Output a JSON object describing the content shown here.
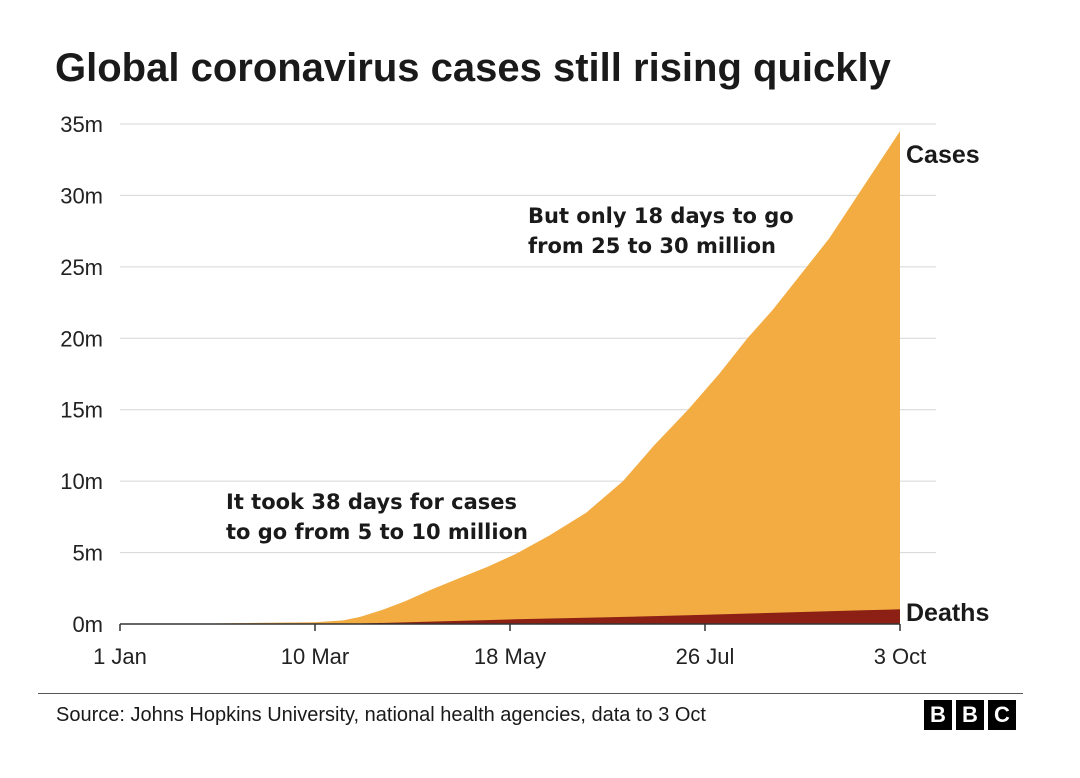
{
  "chart_data": {
    "type": "area",
    "title": "Global coronavirus cases still rising quickly",
    "x_axis": {
      "type": "date",
      "range": [
        "2020-01-01",
        "2020-10-03"
      ],
      "tick_labels": [
        "1 Jan",
        "10 Mar",
        "18 May",
        "26 Jul",
        "3 Oct"
      ],
      "tick_dates": [
        "2020-01-01",
        "2020-03-10",
        "2020-05-18",
        "2020-07-26",
        "2020-10-03"
      ]
    },
    "y_axis": {
      "range": [
        0,
        35000000
      ],
      "ticks": [
        0,
        5000000,
        10000000,
        15000000,
        20000000,
        25000000,
        30000000,
        35000000
      ],
      "tick_labels": [
        "0m",
        "5m",
        "10m",
        "15m",
        "20m",
        "25m",
        "30m",
        "35m"
      ]
    },
    "grid": "horizontal",
    "series": [
      {
        "name": "Cases",
        "color": "#f2ac42",
        "x": [
          "2020-01-01",
          "2020-01-22",
          "2020-02-15",
          "2020-03-10",
          "2020-03-20",
          "2020-03-26",
          "2020-04-03",
          "2020-04-11",
          "2020-04-20",
          "2020-04-30",
          "2020-05-10",
          "2020-05-20",
          "2020-06-01",
          "2020-06-14",
          "2020-06-27",
          "2020-07-08",
          "2020-07-20",
          "2020-07-31",
          "2020-08-10",
          "2020-08-19",
          "2020-08-29",
          "2020-09-08",
          "2020-09-18",
          "2020-09-27",
          "2020-10-03"
        ],
        "values": [
          0,
          500,
          70000,
          120000,
          250000,
          500000,
          1000000,
          1600000,
          2400000,
          3200000,
          4000000,
          4900000,
          6200000,
          7800000,
          10000000,
          12500000,
          15000000,
          17500000,
          20000000,
          22000000,
          24500000,
          27000000,
          30000000,
          32700000,
          34500000
        ]
      },
      {
        "name": "Deaths",
        "color": "#8c2014",
        "x": [
          "2020-01-01",
          "2020-03-10",
          "2020-03-25",
          "2020-04-20",
          "2020-05-20",
          "2020-06-20",
          "2020-07-20",
          "2020-08-20",
          "2020-09-20",
          "2020-10-03"
        ],
        "values": [
          0,
          4000,
          25000,
          170000,
          330000,
          460000,
          610000,
          790000,
          960000,
          1030000
        ]
      }
    ],
    "annotations": [
      {
        "lines": [
          "It took 38 days for cases",
          "to go from 5 to 10 million"
        ]
      },
      {
        "lines": [
          "But only 18 days to go",
          "from 25 to 30 million"
        ]
      }
    ]
  },
  "footer": {
    "source": "Source: Johns Hopkins University, national health agencies, data to 3 Oct",
    "logo_letters": [
      "B",
      "B",
      "C"
    ]
  }
}
